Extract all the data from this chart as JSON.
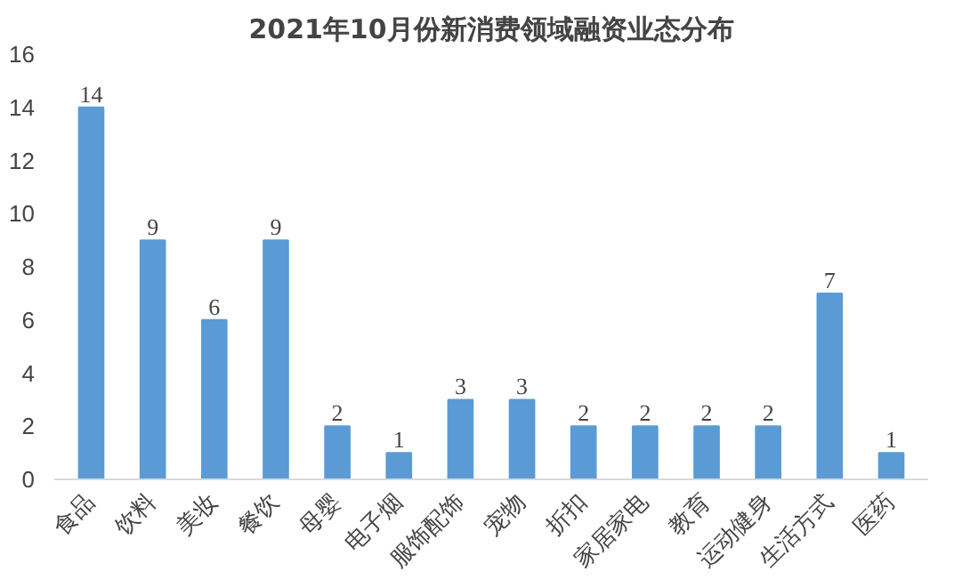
{
  "chart_data": {
    "type": "bar",
    "title": "2021年10月份新消费领域融资业态分布",
    "categories": [
      "食品",
      "饮料",
      "美妆",
      "餐饮",
      "母婴",
      "电子烟",
      "服饰配饰",
      "宠物",
      "折扣",
      "家居家电",
      "教育",
      "运动健身",
      "生活方式",
      "医药"
    ],
    "values": [
      14,
      9,
      6,
      9,
      2,
      1,
      3,
      3,
      2,
      2,
      2,
      2,
      7,
      1
    ],
    "color": "#5b9bd5",
    "ylim": [
      0,
      16
    ],
    "yticks": [
      0,
      2,
      4,
      6,
      8,
      10,
      12,
      14,
      16
    ],
    "grid": false,
    "data_labels": true
  }
}
